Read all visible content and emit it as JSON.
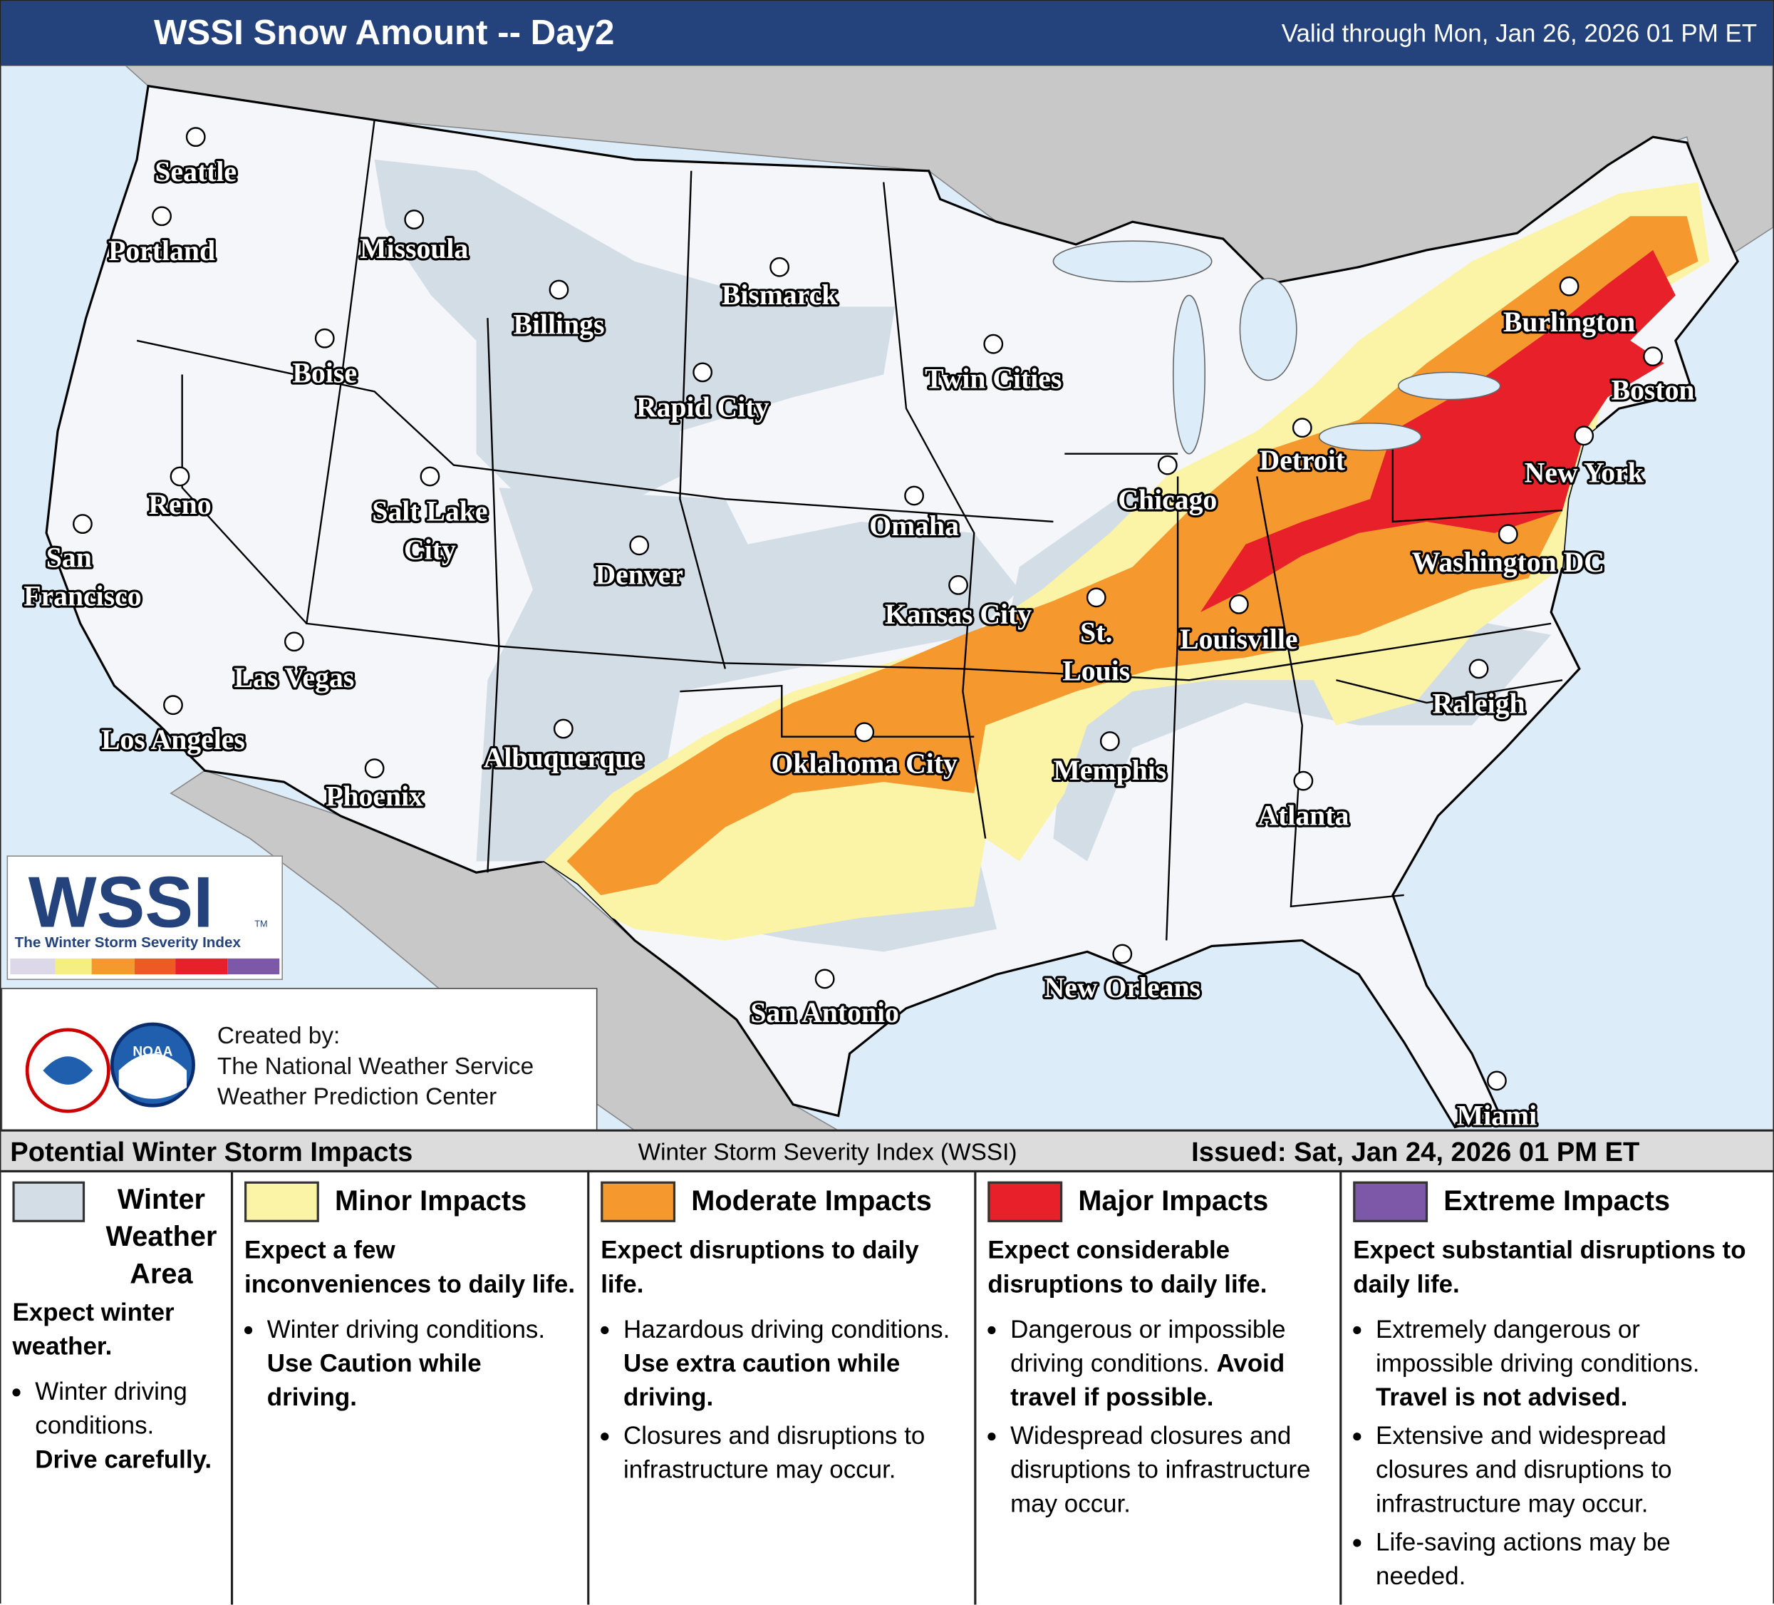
{
  "header": {
    "title": "WSSI Snow Amount -- Day2",
    "valid": "Valid through Mon, Jan 26, 2026 01 PM ET"
  },
  "map": {
    "cities": [
      {
        "label": [
          "Seattle"
        ]
      },
      {
        "label": [
          "Portland"
        ]
      },
      {
        "label": [
          "Missoula"
        ]
      },
      {
        "label": [
          "Billings"
        ]
      },
      {
        "label": [
          "Bismarck"
        ]
      },
      {
        "label": [
          "Boise"
        ]
      },
      {
        "label": [
          "Rapid City"
        ]
      },
      {
        "label": [
          "Twin Cities"
        ]
      },
      {
        "label": [
          "Reno"
        ]
      },
      {
        "label": [
          "Salt Lake",
          "City"
        ]
      },
      {
        "label": [
          "San",
          "Francisco"
        ]
      },
      {
        "label": [
          "Detroit"
        ]
      },
      {
        "label": [
          "Chicago"
        ]
      },
      {
        "label": [
          "Omaha"
        ]
      },
      {
        "label": [
          "Denver"
        ]
      },
      {
        "label": [
          "Kansas City"
        ]
      },
      {
        "label": [
          "St.",
          "Louis"
        ]
      },
      {
        "label": [
          "Louisville"
        ]
      },
      {
        "label": [
          "Las Vegas"
        ]
      },
      {
        "label": [
          "Los Angeles"
        ]
      },
      {
        "label": [
          "Albuquerque"
        ]
      },
      {
        "label": [
          "Oklahoma City"
        ]
      },
      {
        "label": [
          "Memphis"
        ]
      },
      {
        "label": [
          "Phoenix"
        ]
      },
      {
        "label": [
          "Atlanta"
        ]
      },
      {
        "label": [
          "Raleigh"
        ]
      },
      {
        "label": [
          "New Orleans"
        ]
      },
      {
        "label": [
          "San Antonio"
        ]
      },
      {
        "label": [
          "Miami"
        ]
      },
      {
        "label": [
          "Burlington"
        ]
      },
      {
        "label": [
          "Boston"
        ]
      },
      {
        "label": [
          "New York"
        ]
      },
      {
        "label": [
          "Washington DC"
        ]
      }
    ]
  },
  "logo": {
    "text": "WSSI",
    "tm": "TM",
    "subtitle": "The Winter Storm Severity Index"
  },
  "credits": {
    "noaa": "NOAA",
    "lines": [
      "Created by:",
      "The National Weather Service",
      "Weather Prediction Center"
    ]
  },
  "legend": {
    "title": "Potential Winter Storm Impacts",
    "center": "Winter Storm Severity Index (WSSI)",
    "issued": "Issued: Sat, Jan 24, 2026 01 PM ET",
    "categories": [
      {
        "name": "Winter Weather Area",
        "color": "#d3dde6",
        "summary": "Expect winter weather.",
        "bullets": [
          {
            "text": "Winter driving conditions.",
            "bold": "Drive carefully."
          }
        ]
      },
      {
        "name": "Minor Impacts",
        "color": "#fbf3a5",
        "summary": "Expect a few inconveniences to daily life.",
        "bullets": [
          {
            "text": "Winter driving conditions.",
            "bold": "Use Caution while driving."
          }
        ]
      },
      {
        "name": "Moderate Impacts",
        "color": "#f5992e",
        "summary": "Expect disruptions to daily life.",
        "bullets": [
          {
            "text": "Hazardous driving conditions.",
            "bold": "Use extra caution while driving."
          },
          {
            "text": "Closures and disruptions to infrastructure may occur."
          }
        ]
      },
      {
        "name": "Major Impacts",
        "color": "#e8202a",
        "summary": "Expect considerable disruptions to daily life.",
        "bullets": [
          {
            "text": "Dangerous or impossible driving conditions.",
            "bold": "Avoid travel if possible."
          },
          {
            "text": "Widespread closures and disruptions to infrastructure may occur."
          }
        ]
      },
      {
        "name": "Extreme Impacts",
        "color": "#7e58a8",
        "summary": "Expect substantial disruptions to daily life.",
        "bullets": [
          {
            "text": "Extremely dangerous or impossible driving conditions.",
            "bold": "Travel is not advised."
          },
          {
            "text": "Extensive and widespread closures and disruptions to infrastructure may occur."
          },
          {
            "text": "Life-saving actions may be needed."
          }
        ]
      }
    ]
  }
}
